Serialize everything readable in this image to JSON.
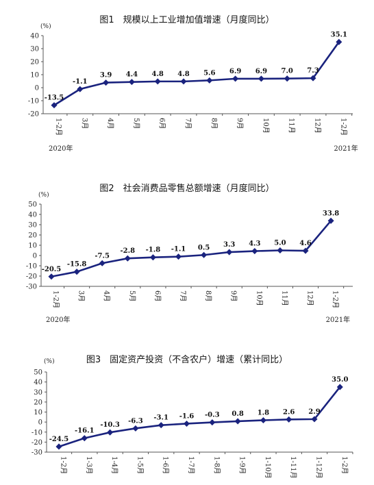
{
  "chart_data": [
    {
      "type": "line",
      "title": "图1　规模以上工业增加值增速（月度同比）",
      "unit": "(%)",
      "categories": [
        "1-2月",
        "3月",
        "4月",
        "5月",
        "6月",
        "7月",
        "8月",
        "9月",
        "10月",
        "11月",
        "12月",
        "1-2月"
      ],
      "values": [
        -13.5,
        -1.1,
        3.9,
        4.4,
        4.8,
        4.8,
        5.6,
        6.9,
        6.9,
        7.0,
        7.3,
        35.1
      ],
      "labels": [
        "-13.5",
        "-1.1",
        "3.9",
        "4.4",
        "4.8",
        "4.8",
        "5.6",
        "6.9",
        "6.9",
        "7.0",
        "7.3",
        "35.1"
      ],
      "ylim": [
        -20,
        40
      ],
      "yticks": [
        -20,
        -10,
        0,
        10,
        20,
        30,
        40
      ],
      "year_left": "2020年",
      "year_right": "2021年",
      "line_color": "#1a237e"
    },
    {
      "type": "line",
      "title": "图2　社会消费品零售总额增速（月度同比）",
      "unit": "(%)",
      "categories": [
        "1-2月",
        "3月",
        "4月",
        "5月",
        "6月",
        "7月",
        "8月",
        "9月",
        "10月",
        "11月",
        "12月",
        "1-2月"
      ],
      "values": [
        -20.5,
        -15.8,
        -7.5,
        -2.8,
        -1.8,
        -1.1,
        0.5,
        3.3,
        4.3,
        5.0,
        4.6,
        33.8
      ],
      "labels": [
        "-20.5",
        "-15.8",
        "-7.5",
        "-2.8",
        "-1.8",
        "-1.1",
        "0.5",
        "3.3",
        "4.3",
        "5.0",
        "4.6",
        "33.8"
      ],
      "ylim": [
        -30,
        50
      ],
      "yticks": [
        -30,
        -20,
        -10,
        0,
        10,
        20,
        30,
        40,
        50
      ],
      "year_left": "2020年",
      "year_right": "2021年",
      "line_color": "#1a237e"
    },
    {
      "type": "line",
      "title": "图3　固定资产投资（不含农户）增速（累计同比）",
      "unit": "(%)",
      "categories": [
        "1-2月",
        "1-3月",
        "1-4月",
        "1-5月",
        "1-6月",
        "1-7月",
        "1-8月",
        "1-9月",
        "1-10月",
        "1-11月",
        "1-12月",
        "1-2月"
      ],
      "values": [
        -24.5,
        -16.1,
        -10.3,
        -6.3,
        -3.1,
        -1.6,
        -0.3,
        0.8,
        1.8,
        2.6,
        2.9,
        35.0
      ],
      "labels": [
        "-24.5",
        "-16.1",
        "-10.3",
        "-6.3",
        "-3.1",
        "-1.6",
        "-0.3",
        "0.8",
        "1.8",
        "2.6",
        "2.9",
        "35.0"
      ],
      "ylim": [
        -30,
        50
      ],
      "yticks": [
        -30,
        -20,
        -10,
        0,
        10,
        20,
        30,
        40,
        50
      ],
      "year_left": "",
      "year_right": "",
      "line_color": "#1a237e"
    }
  ]
}
